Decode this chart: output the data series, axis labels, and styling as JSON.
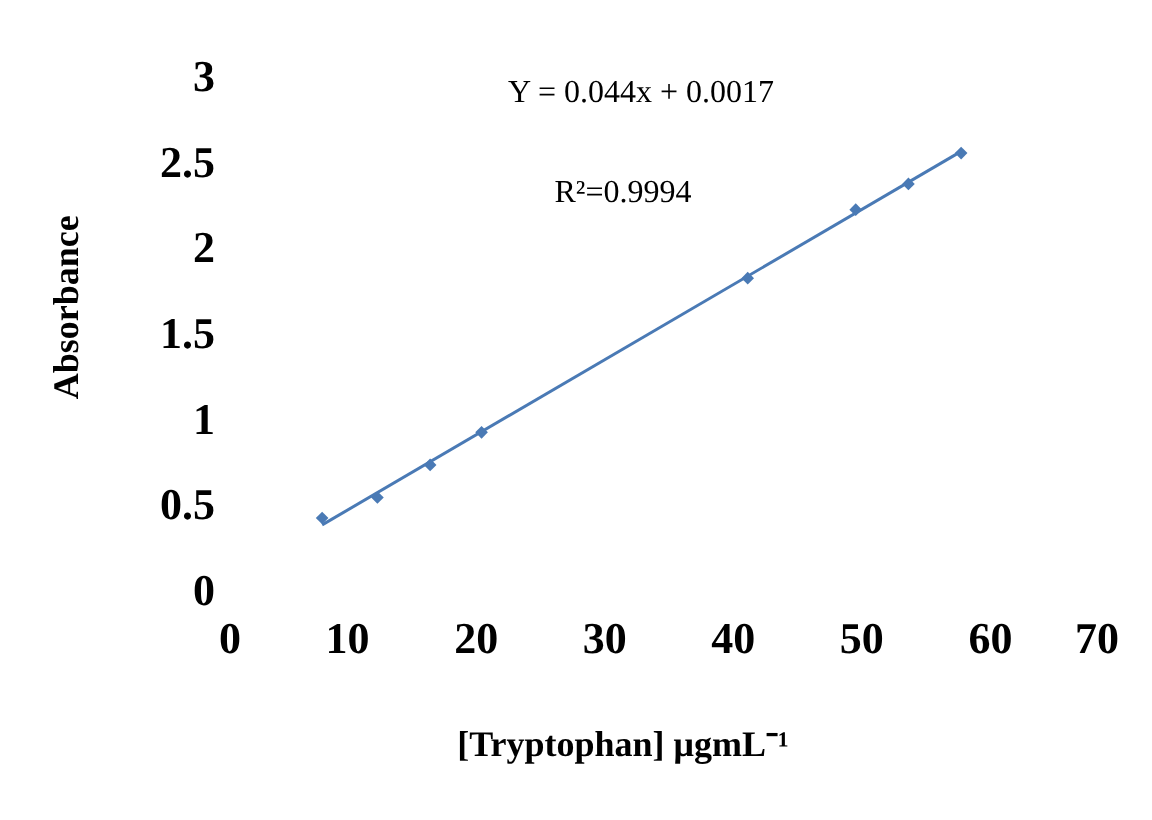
{
  "chart_data": {
    "type": "scatter",
    "xlabel": "[Tryptophan] μgmL⁻¹",
    "ylabel": "Absorbance",
    "x": [
      8.1,
      12.4,
      16.5,
      20.5,
      41.2,
      49.6,
      53.7,
      57.8
    ],
    "series": [
      {
        "color": "#4a7ab5",
        "marker": "diamond",
        "values": [
          0.42,
          0.54,
          0.73,
          0.92,
          1.82,
          2.22,
          2.37,
          2.55
        ]
      },
      {
        "type": "line",
        "marker": "none",
        "color": "#4a7ab5",
        "x": [
          8.1,
          57.8
        ],
        "values": [
          0.38,
          2.56
        ]
      }
    ],
    "xlim": [
      0,
      70
    ],
    "ylim": [
      0,
      3
    ],
    "xticks": [
      0,
      10,
      20,
      30,
      40,
      50,
      60,
      70
    ],
    "yticks": [
      0,
      0.5,
      1,
      1.5,
      2,
      2.5,
      3
    ],
    "annotations": [
      "Y = 0.044x + 0.0017",
      "R²=0.9994"
    ],
    "grid": false,
    "line_style": "solid"
  }
}
